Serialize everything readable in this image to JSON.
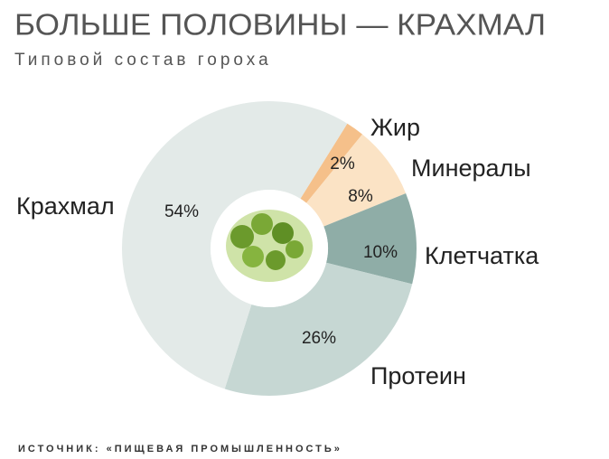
{
  "chart_data": {
    "type": "donut",
    "title": "БОЛЬШЕ ПОЛОВИНЫ — КРАХМАЛ",
    "subtitle": "Типовой состав гороха",
    "source": "ИСТОЧНИК: «ПИЩЕВАЯ ПРОМЫШЛЕННОСТЬ»",
    "categories": [
      "Жир",
      "Минералы",
      "Клетчатка",
      "Протеин",
      "Крахмал"
    ],
    "values": [
      2,
      8,
      10,
      26,
      54
    ],
    "value_labels": [
      "2%",
      "8%",
      "10%",
      "26%",
      "54%"
    ],
    "colors": [
      "#f5c08a",
      "#fbe3c5",
      "#8fada7",
      "#c6d7d3",
      "#e3eae8"
    ]
  }
}
